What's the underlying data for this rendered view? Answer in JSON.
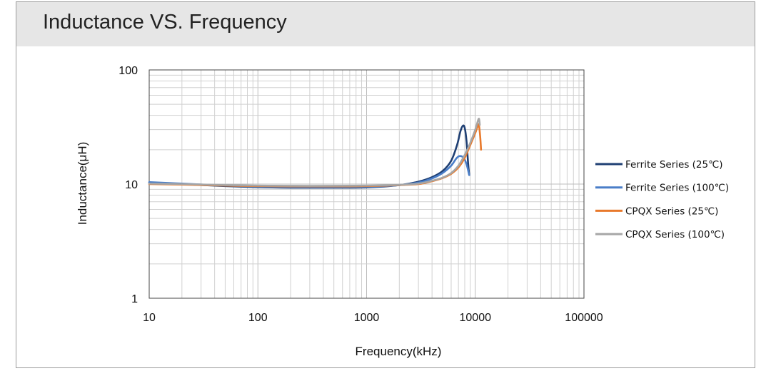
{
  "chart_data": {
    "type": "line",
    "title": "Inductance VS. Frequency",
    "xlabel": "Frequency(kHz)",
    "ylabel": "Inductance(μH)",
    "x_scale": "log",
    "y_scale": "log",
    "xlim": [
      10,
      100000
    ],
    "ylim": [
      1,
      100
    ],
    "x_ticks": [
      "10",
      "100",
      "1000",
      "10000",
      "100000"
    ],
    "y_ticks": [
      "1",
      "10",
      "100"
    ],
    "grid": true,
    "legend_position": "right",
    "series": [
      {
        "name": "Ferrite Series (25℃)",
        "color": "#1f3f73",
        "points": [
          [
            10,
            10.3
          ],
          [
            20,
            10.0
          ],
          [
            50,
            9.6
          ],
          [
            100,
            9.4
          ],
          [
            200,
            9.3
          ],
          [
            500,
            9.3
          ],
          [
            1000,
            9.35
          ],
          [
            2000,
            9.8
          ],
          [
            3000,
            10.5
          ],
          [
            4000,
            11.5
          ],
          [
            5000,
            13.0
          ],
          [
            6000,
            16.0
          ],
          [
            6800,
            22.0
          ],
          [
            7300,
            29.0
          ],
          [
            7700,
            32.5
          ],
          [
            8000,
            31.0
          ],
          [
            8300,
            24.0
          ],
          [
            8600,
            15.0
          ],
          [
            8800,
            12.0
          ]
        ]
      },
      {
        "name": "Ferrite Series (100℃)",
        "color": "#4a7ec8",
        "points": [
          [
            10,
            10.4
          ],
          [
            20,
            10.1
          ],
          [
            50,
            9.7
          ],
          [
            100,
            9.5
          ],
          [
            200,
            9.4
          ],
          [
            500,
            9.4
          ],
          [
            1000,
            9.45
          ],
          [
            2000,
            9.8
          ],
          [
            3000,
            10.3
          ],
          [
            4000,
            11.2
          ],
          [
            5000,
            12.5
          ],
          [
            6000,
            14.5
          ],
          [
            6700,
            16.8
          ],
          [
            7200,
            17.6
          ],
          [
            7800,
            17.0
          ],
          [
            8300,
            15.0
          ],
          [
            8800,
            12.0
          ]
        ]
      },
      {
        "name": "CPQX Series (25℃)",
        "color": "#e8792b",
        "points": [
          [
            10,
            10.0
          ],
          [
            20,
            9.9
          ],
          [
            50,
            9.7
          ],
          [
            100,
            9.6
          ],
          [
            200,
            9.55
          ],
          [
            500,
            9.55
          ],
          [
            1000,
            9.6
          ],
          [
            2000,
            9.8
          ],
          [
            3000,
            10.0
          ],
          [
            4000,
            10.6
          ],
          [
            5000,
            11.3
          ],
          [
            6000,
            12.3
          ],
          [
            7000,
            14.0
          ],
          [
            8000,
            17.0
          ],
          [
            9000,
            22.0
          ],
          [
            10000,
            28.0
          ],
          [
            10500,
            32.0
          ],
          [
            10800,
            33.0
          ],
          [
            11100,
            26.0
          ],
          [
            11300,
            20.0
          ]
        ]
      },
      {
        "name": "CPQX Series (100℃)",
        "color": "#a6a6a6",
        "points": [
          [
            10,
            10.1
          ],
          [
            20,
            10.0
          ],
          [
            50,
            9.8
          ],
          [
            100,
            9.7
          ],
          [
            200,
            9.65
          ],
          [
            500,
            9.65
          ],
          [
            1000,
            9.7
          ],
          [
            2000,
            9.85
          ],
          [
            3000,
            10.1
          ],
          [
            4000,
            10.7
          ],
          [
            5000,
            11.4
          ],
          [
            6000,
            12.5
          ],
          [
            7000,
            14.5
          ],
          [
            8000,
            18.0
          ],
          [
            9000,
            23.0
          ],
          [
            10000,
            30.0
          ],
          [
            10700,
            37.0
          ],
          [
            10900,
            36.0
          ],
          [
            11000,
            33.0
          ]
        ]
      }
    ]
  }
}
